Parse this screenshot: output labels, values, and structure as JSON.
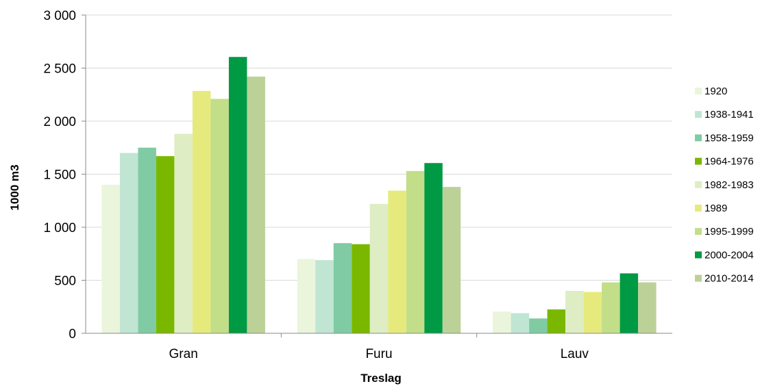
{
  "chart_data": {
    "type": "bar",
    "title": "",
    "xlabel": "Treslag",
    "ylabel": "1000 m3",
    "categories": [
      "Gran",
      "Furu",
      "Lauv"
    ],
    "ylim": [
      0,
      3000
    ],
    "yticks": [
      0,
      500,
      1000,
      1500,
      2000,
      2500,
      3000
    ],
    "ytick_labels": [
      "0",
      "500",
      "1 000",
      "1 500",
      "2 000",
      "2 500",
      "3 000"
    ],
    "grid": true,
    "legend_position": "right",
    "series": [
      {
        "name": "1920",
        "color": "#eaf5dc",
        "values": [
          1400,
          700,
          205
        ]
      },
      {
        "name": "1938-1941",
        "color": "#c0e5d3",
        "values": [
          1700,
          690,
          190
        ]
      },
      {
        "name": "1958-1959",
        "color": "#80cba3",
        "values": [
          1750,
          850,
          140
        ]
      },
      {
        "name": "1964-1976",
        "color": "#7ab800",
        "values": [
          1670,
          840,
          225
        ]
      },
      {
        "name": "1982-1983",
        "color": "#deedc3",
        "values": [
          1880,
          1220,
          400
        ]
      },
      {
        "name": "1989",
        "color": "#e6ea7d",
        "values": [
          2285,
          1345,
          390
        ]
      },
      {
        "name": "1995-1999",
        "color": "#c2de88",
        "values": [
          2210,
          1530,
          480
        ]
      },
      {
        "name": "2000-2004",
        "color": "#009a44",
        "values": [
          2605,
          1605,
          565
        ]
      },
      {
        "name": "2010-2014",
        "color": "#bcd198",
        "values": [
          2420,
          1380,
          480
        ]
      }
    ]
  }
}
